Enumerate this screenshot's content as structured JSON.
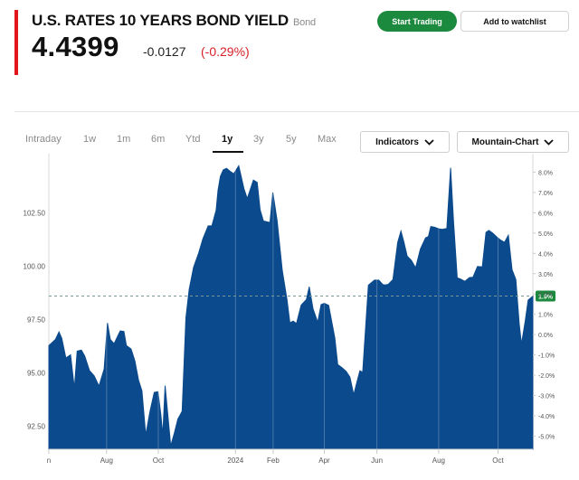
{
  "header": {
    "title": "U.S. RATES 10 YEARS BOND YIELD",
    "type_tag": "Bond",
    "price": "4.4399",
    "change": "-0.0127",
    "change_pct": "(-0.29%)",
    "change_color": "#d81f26"
  },
  "actions": {
    "start_trading": "Start Trading",
    "add_watchlist": "Add to watchlist",
    "start_trading_color": "#1c8a3e"
  },
  "timeframes": [
    {
      "label": "Intraday",
      "active": false
    },
    {
      "label": "1w",
      "active": false
    },
    {
      "label": "1m",
      "active": false
    },
    {
      "label": "6m",
      "active": false
    },
    {
      "label": "Ytd",
      "active": false
    },
    {
      "label": "1y",
      "active": true
    },
    {
      "label": "3y",
      "active": false
    },
    {
      "label": "5y",
      "active": false
    },
    {
      "label": "Max",
      "active": false
    }
  ],
  "controls": {
    "indicators": "Indicators",
    "chart_type": "Mountain-Chart",
    "chevron_icon": "chevron-down-icon"
  },
  "chart_data": {
    "type": "area",
    "fill_color": "#0b4a8c",
    "y_ticks_left": [
      "102.50",
      "100.00",
      "97.50",
      "95.00",
      "92.50"
    ],
    "y_ticks_left_values": [
      102.5,
      100.0,
      97.5,
      95.0,
      92.5
    ],
    "ylim": [
      91.42,
      104.98
    ],
    "y_ticks_right": [
      "8.0%",
      "7.0%",
      "6.0%",
      "5.0%",
      "4.0%",
      "3.0%",
      "2.0%",
      "1.0%",
      "0.0%",
      "-1.0%",
      "-2.0%",
      "-3.0%",
      "-4.0%",
      "-5.0%"
    ],
    "y_ticks_right_values": [
      8,
      7,
      6,
      5,
      4,
      3,
      2,
      1,
      0,
      -1,
      -2,
      -3,
      -4,
      -5
    ],
    "right_ylim": [
      -5.65,
      8.6
    ],
    "x_ticks": [
      "n",
      "Aug",
      "Oct",
      "2024",
      "Feb",
      "Apr",
      "Jun",
      "Aug",
      "Oct"
    ],
    "x_ticks_pos": [
      0,
      0.1193,
      0.2261,
      0.3856,
      0.4634,
      0.5691,
      0.6778,
      0.8054,
      0.9281
    ],
    "reference_label": "1.9%",
    "reference_value": 1.9,
    "grid": false,
    "series": [
      {
        "x": [
          0.0,
          0.0136,
          0.021,
          0.0268,
          0.0351,
          0.0449,
          0.0527,
          0.0585,
          0.0673,
          0.0742,
          0.0839,
          0.0937,
          0.1035,
          0.1142,
          0.1211,
          0.1269,
          0.1347,
          0.1474,
          0.1552,
          0.1602,
          0.1699,
          0.1777,
          0.1855,
          0.1924,
          0.2001,
          0.2089,
          0.2177,
          0.2255,
          0.2314,
          0.2353,
          0.2402,
          0.2518,
          0.2597,
          0.2665,
          0.2753,
          0.2831,
          0.29,
          0.2988,
          0.3095,
          0.3183,
          0.3291,
          0.3368,
          0.3457,
          0.3496,
          0.3544,
          0.3603,
          0.3671,
          0.375,
          0.3818,
          0.3924,
          0.4032,
          0.4099,
          0.4227,
          0.4305,
          0.4364,
          0.4433,
          0.4569,
          0.4628,
          0.4716,
          0.4823,
          0.4921,
          0.498,
          0.5048,
          0.5116,
          0.5214,
          0.5321,
          0.538,
          0.5458,
          0.5556,
          0.5624,
          0.5692,
          0.5782,
          0.5908,
          0.5968,
          0.6055,
          0.6143,
          0.6221,
          0.6299,
          0.6367,
          0.6426,
          0.6484,
          0.6601,
          0.6728,
          0.6817,
          0.6895,
          0.6943,
          0.7011,
          0.7109,
          0.7207,
          0.7275,
          0.7334,
          0.7403,
          0.7491,
          0.7578,
          0.7676,
          0.7783,
          0.7842,
          0.7891,
          0.7969,
          0.8047,
          0.8125,
          0.8222,
          0.8301,
          0.8359,
          0.8438,
          0.8516,
          0.8594,
          0.8691,
          0.8761,
          0.8857,
          0.8955,
          0.9032,
          0.9092,
          0.917,
          0.9257,
          0.9326,
          0.9414,
          0.9493,
          0.9571,
          0.9649,
          0.9717,
          0.9765,
          0.9843,
          0.9902,
          1.0
        ],
        "values": [
          96.28,
          96.57,
          96.92,
          96.62,
          95.7,
          95.85,
          94.28,
          96.02,
          96.07,
          95.79,
          95.11,
          94.86,
          94.38,
          95.18,
          97.34,
          96.57,
          96.37,
          96.97,
          96.94,
          96.28,
          96.12,
          95.56,
          94.65,
          94.16,
          92.08,
          93.2,
          94.09,
          94.12,
          93.05,
          92.08,
          94.4,
          91.58,
          92.21,
          92.84,
          93.2,
          97.59,
          98.91,
          99.94,
          100.62,
          101.29,
          101.89,
          101.89,
          102.63,
          103.56,
          104.21,
          104.52,
          104.59,
          104.44,
          104.33,
          104.71,
          103.63,
          103.17,
          104.04,
          103.93,
          102.65,
          102.12,
          102.05,
          103.46,
          102.14,
          99.81,
          98.41,
          97.35,
          97.43,
          97.31,
          98.18,
          98.44,
          99.04,
          98.01,
          97.37,
          98.2,
          98.26,
          98.16,
          96.64,
          95.39,
          95.25,
          95.07,
          94.8,
          93.98,
          94.58,
          95.1,
          95.03,
          99.11,
          99.35,
          99.35,
          99.15,
          99.12,
          99.15,
          99.37,
          101.12,
          101.65,
          101.14,
          100.47,
          100.27,
          99.93,
          100.81,
          101.33,
          101.39,
          101.86,
          101.83,
          101.76,
          101.73,
          101.77,
          104.61,
          102.18,
          99.46,
          99.39,
          99.29,
          99.47,
          99.48,
          99.99,
          99.97,
          101.59,
          101.68,
          101.55,
          101.37,
          101.24,
          101.12,
          101.45,
          99.84,
          99.38,
          97.31,
          96.35,
          97.44,
          98.41,
          98.6
        ]
      }
    ]
  }
}
